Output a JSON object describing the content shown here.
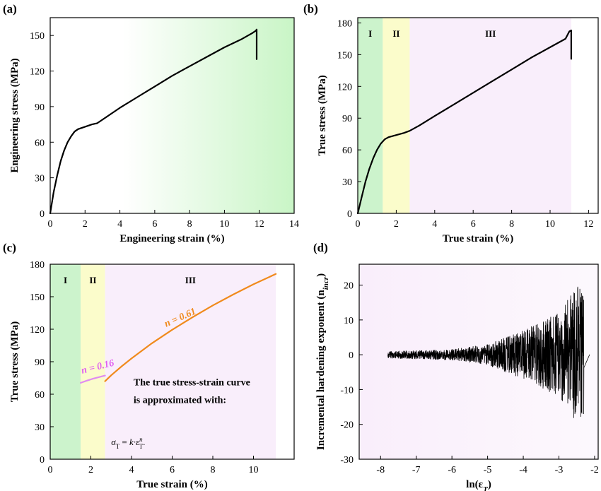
{
  "chart_data": [
    {
      "panel": "(a)",
      "type": "line",
      "xlabel": "Engineering strain (%)",
      "ylabel": "Engineering stress (MPa)",
      "xlim": [
        0,
        14
      ],
      "ylim": [
        0,
        165
      ],
      "xticks": [
        0,
        2,
        4,
        6,
        8,
        10,
        12,
        14
      ],
      "yticks": [
        0,
        30,
        60,
        90,
        120,
        150
      ],
      "background": {
        "type": "gradient",
        "from_x": 4.2,
        "to_x": 14,
        "color": "#c9f5c6"
      },
      "series": [
        {
          "color": "#000000",
          "x": [
            0,
            0.2,
            0.4,
            0.6,
            0.8,
            1.0,
            1.2,
            1.4,
            1.6,
            2.0,
            2.4,
            2.7,
            3.2,
            4,
            5,
            6,
            7,
            8,
            9,
            10,
            11,
            11.6,
            11.8,
            11.85,
            11.85
          ],
          "y": [
            0,
            18,
            32,
            44,
            53,
            60,
            65,
            69,
            71,
            73,
            75,
            76,
            81,
            89,
            98,
            107,
            116,
            124,
            132,
            140,
            147,
            152,
            154,
            155,
            130
          ]
        }
      ]
    },
    {
      "panel": "(b)",
      "type": "line",
      "xlabel": "True strain (%)",
      "ylabel": "True stress (MPa)",
      "xlim": [
        0,
        12.5
      ],
      "ylim": [
        0,
        185
      ],
      "xticks": [
        0,
        2,
        4,
        6,
        8,
        10,
        12
      ],
      "yticks": [
        0,
        30,
        60,
        90,
        120,
        150,
        180
      ],
      "regions": [
        {
          "label": "I",
          "x0": 0,
          "x1": 1.3,
          "color": "#ccf3cc"
        },
        {
          "label": "II",
          "x0": 1.3,
          "x1": 2.7,
          "color": "#fbfccb"
        },
        {
          "label": "III",
          "x0": 2.7,
          "x1": 11.1,
          "color": "#f9eefb"
        }
      ],
      "series": [
        {
          "color": "#000000",
          "x": [
            0,
            0.2,
            0.4,
            0.6,
            0.8,
            1.0,
            1.2,
            1.4,
            1.6,
            2.0,
            2.4,
            2.7,
            3.2,
            4,
            5,
            6,
            7,
            8,
            9,
            10,
            10.8,
            11.0,
            11.1,
            11.1
          ],
          "y": [
            0,
            15,
            30,
            42,
            52,
            60,
            66,
            70,
            72,
            74,
            76,
            78,
            83,
            92,
            103,
            114,
            125,
            136,
            147,
            157,
            165,
            172,
            173,
            146
          ]
        }
      ]
    },
    {
      "panel": "(c)",
      "type": "line",
      "xlabel": "True strain (%)",
      "ylabel": "True stress (MPa)",
      "xlim": [
        0,
        12
      ],
      "ylim": [
        0,
        180
      ],
      "xticks": [
        0,
        2,
        4,
        6,
        8,
        10
      ],
      "yticks": [
        0,
        30,
        60,
        90,
        120,
        150,
        180
      ],
      "regions": [
        {
          "label": "I",
          "x0": 0,
          "x1": 1.5,
          "color": "#ccf3cc"
        },
        {
          "label": "II",
          "x0": 1.5,
          "x1": 2.7,
          "color": "#fbfccb"
        },
        {
          "label": "III",
          "x0": 2.7,
          "x1": 11.1,
          "color": "#f9eefb"
        }
      ],
      "series": [
        {
          "color": "#e08cf0",
          "x": [
            1.5,
            1.8,
            2.1,
            2.4,
            2.7
          ],
          "y": [
            70.5,
            72.5,
            74.3,
            75.8,
            77.2
          ]
        },
        {
          "color": "#f08a1c",
          "x": [
            2.7,
            3.0,
            3.5,
            4,
            5,
            6,
            7,
            8,
            9,
            10,
            11.1
          ],
          "y": [
            72,
            77.5,
            85.5,
            93,
            107,
            119.5,
            131,
            142,
            152,
            161.5,
            171
          ]
        }
      ],
      "annotations": [
        {
          "text": "n = 0.16",
          "color": "#e060f0"
        },
        {
          "text": "n = 0.61",
          "color": "#f08a1c"
        }
      ],
      "note_lines": [
        "The true stress-strain curve",
        "is approximated with:"
      ],
      "formula": {
        "lhs": "σ",
        "lhs_sub": "T",
        "eq": " = k·ε",
        "exp": "n",
        "rhs_sub": "T",
        "tail": "."
      }
    },
    {
      "panel": "(d)",
      "type": "line",
      "xlabel": "ln(ε_T)",
      "ylabel": "Incremental hardening exponent (n_incr)",
      "xlim": [
        -8.6,
        -1.9
      ],
      "ylim": [
        -30,
        26
      ],
      "xticks": [
        -8,
        -7,
        -6,
        -5,
        -4,
        -3,
        -2
      ],
      "yticks": [
        -30,
        -20,
        -10,
        0,
        10,
        20
      ],
      "background": {
        "type": "gradient",
        "from_x": -8.6,
        "to_x": -1.9,
        "color": "#f9eefb"
      },
      "series": [
        {
          "color": "#000000",
          "description": "noisy signal around zero",
          "x_start": -7.8,
          "x_end": -2.3,
          "amplitude_profile": [
            {
              "x": -7.8,
              "amp": 1.0
            },
            {
              "x": -6.0,
              "amp": 1.5
            },
            {
              "x": -5.0,
              "amp": 3.0
            },
            {
              "x": -4.0,
              "amp": 7.0
            },
            {
              "x": -3.0,
              "amp": 12.0
            },
            {
              "x": -2.5,
              "amp": 20.0
            },
            {
              "x": -2.3,
              "amp": 18.0
            }
          ]
        }
      ]
    }
  ]
}
